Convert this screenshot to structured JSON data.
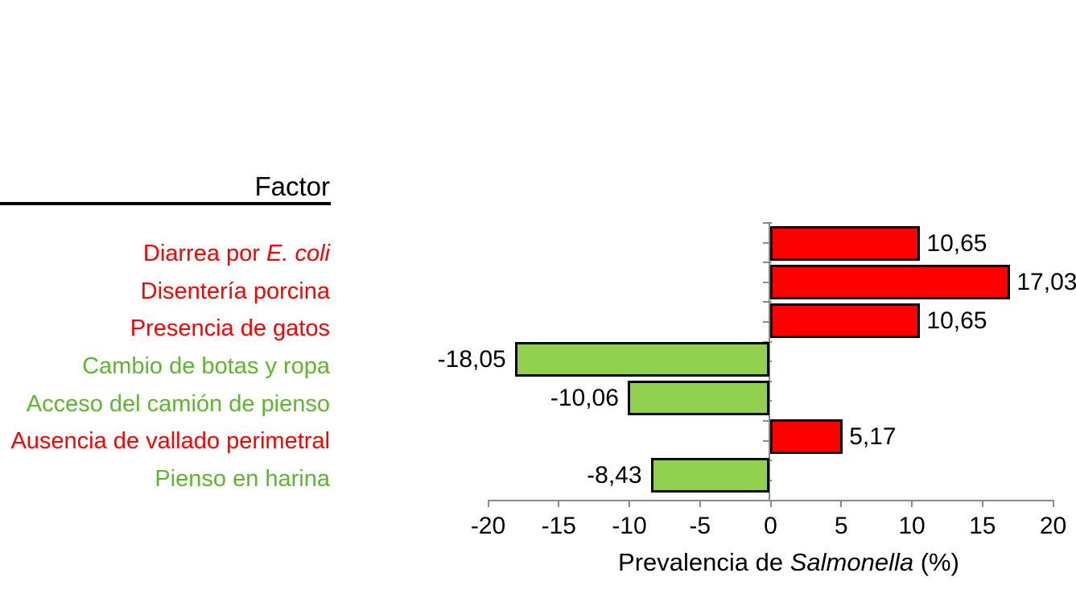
{
  "header": {
    "factor_title": "Factor"
  },
  "colors": {
    "risk_bar": "#FF0000",
    "protective_bar": "#92D050",
    "risk_label": "#FF0000",
    "protective_label": "#5DB72D",
    "bar_border": "#000000",
    "axis": "#898989",
    "text": "#000000"
  },
  "chart_data": {
    "type": "bar",
    "orientation": "horizontal",
    "xlabel": "Prevalencia de Salmonella (%)",
    "xlabel_segments": [
      {
        "t": "Prevalencia de "
      },
      {
        "t": "Salmonella",
        "i": true
      },
      {
        "t": " (%)"
      }
    ],
    "xlim": [
      -20,
      20
    ],
    "x_ticks": [
      "-20",
      "-15",
      "-10",
      "-5",
      "0",
      "5",
      "10",
      "15",
      "20"
    ],
    "grid": false,
    "legend": false,
    "categories": [
      "Diarrea por E. coli",
      "Disentería porcina",
      "Presencia de gatos",
      "Cambio de botas y ropa",
      "Acceso del camión de pienso",
      "Ausencia de vallado perimetral",
      "Pienso en harina"
    ],
    "category_segments": [
      [
        {
          "t": "Diarrea por "
        },
        {
          "t": "E. coli",
          "i": true
        }
      ],
      [
        {
          "t": "Disentería porcina"
        }
      ],
      [
        {
          "t": "Presencia de gatos"
        }
      ],
      [
        {
          "t": "Cambio de botas y ropa"
        }
      ],
      [
        {
          "t": "Acceso del camión de pienso"
        }
      ],
      [
        {
          "t": "Ausencia de vallado perimetral"
        }
      ],
      [
        {
          "t": "Pienso en harina"
        }
      ]
    ],
    "category_effect": [
      "risk",
      "risk",
      "risk",
      "protective",
      "protective",
      "risk",
      "protective"
    ],
    "values": [
      10.65,
      17.03,
      10.65,
      -18.05,
      -10.06,
      5.17,
      -8.43
    ],
    "value_labels": [
      "10,65",
      "17,03",
      "10,65",
      "-18,05",
      "-10,06",
      "5,17",
      "-8,43"
    ]
  }
}
